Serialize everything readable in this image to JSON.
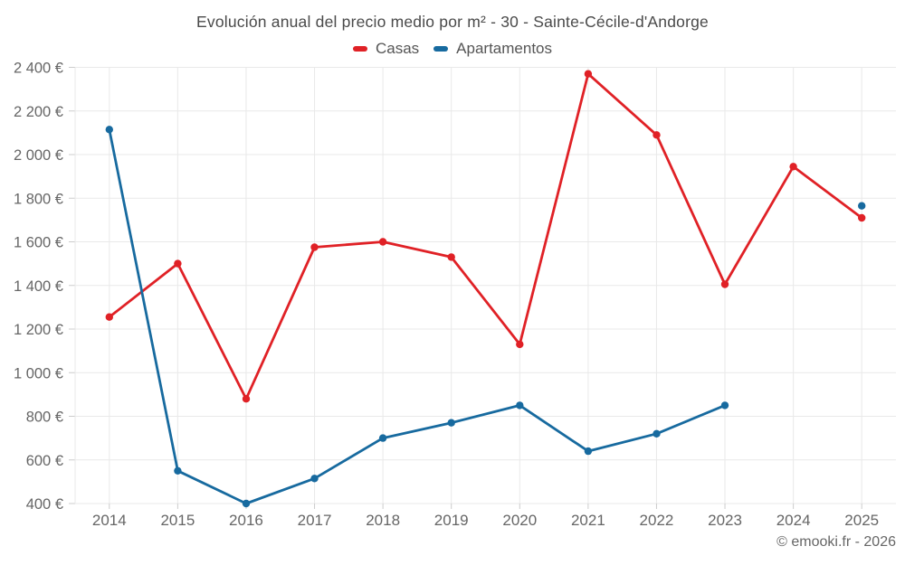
{
  "chart": {
    "title": "Evolución anual del precio medio por m² - 30 - Sainte-Cécile-d'Andorge"
  },
  "footer": {
    "text": "© emooki.fr - 2026"
  },
  "chart_data": {
    "type": "line",
    "title": "Evolución anual del precio medio por m² - 30 - Sainte-Cécile-d'Andorge",
    "categories": [
      "2014",
      "2015",
      "2016",
      "2017",
      "2018",
      "2019",
      "2020",
      "2021",
      "2022",
      "2023",
      "2024",
      "2025"
    ],
    "series": [
      {
        "name": "Casas",
        "color": "#e02126",
        "values": [
          1255,
          1500,
          880,
          1575,
          1600,
          1530,
          1130,
          2370,
          2090,
          1405,
          1945,
          1710
        ]
      },
      {
        "name": "Apartamentos",
        "color": "#176a9f",
        "values": [
          2115,
          550,
          400,
          515,
          700,
          770,
          850,
          640,
          720,
          850,
          null,
          1765
        ]
      }
    ],
    "xlabel": "",
    "ylabel": "",
    "ytick_suffix": " €",
    "ylim": [
      400,
      2400
    ],
    "ytick_step": 200,
    "grid": true,
    "legend_position": "top",
    "colors": {
      "grid": "#e9e9e9",
      "tick": "#cccccc",
      "axis_text": "#666666"
    }
  }
}
